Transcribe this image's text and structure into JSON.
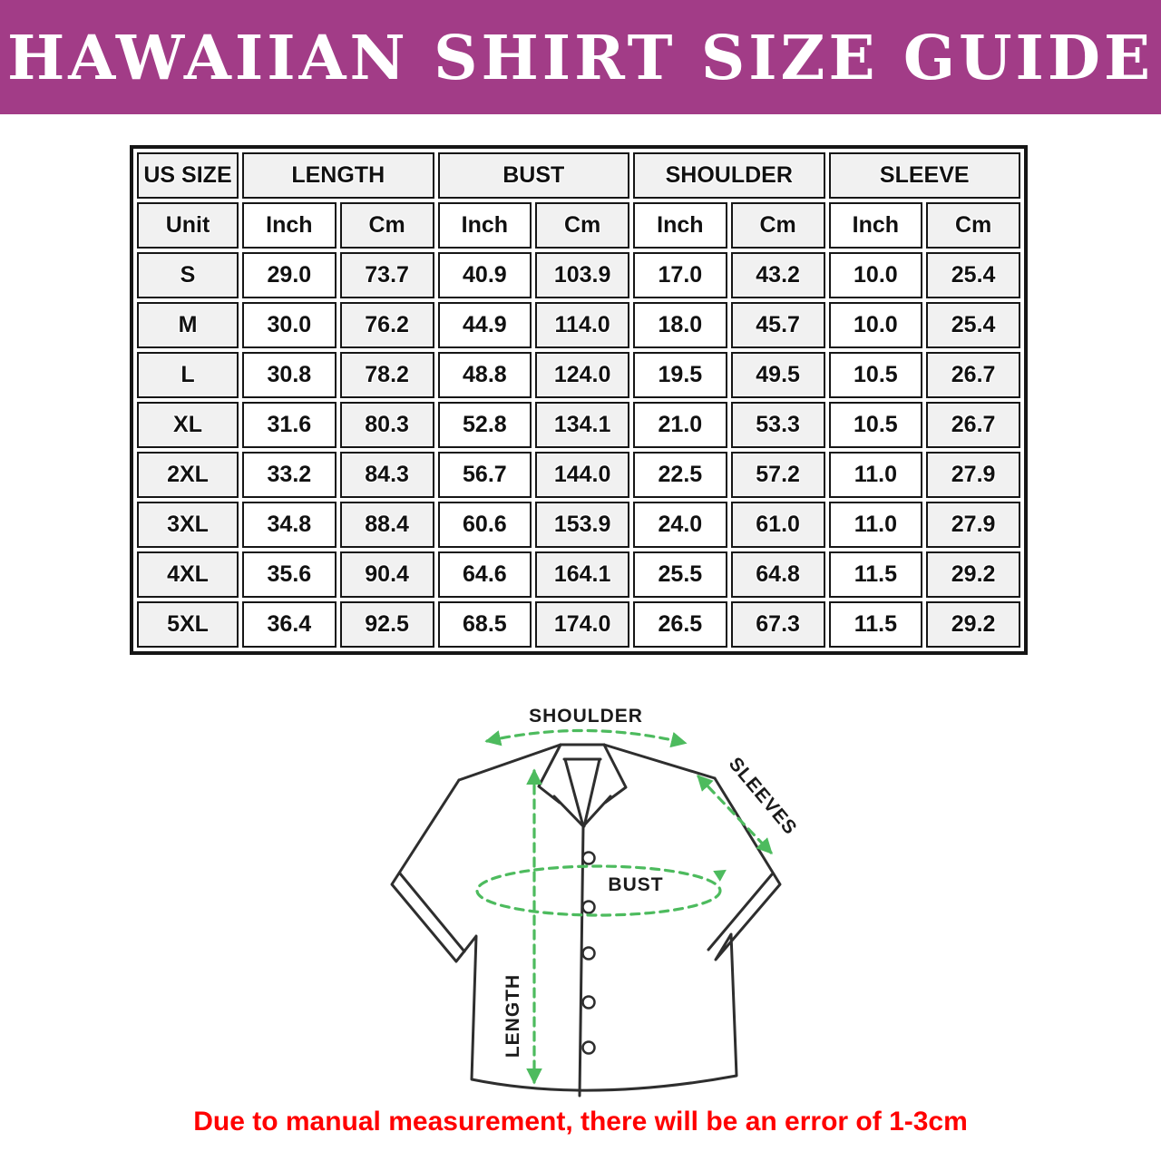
{
  "banner": {
    "title": "HAWAIIAN SHIRT SIZE GUIDE",
    "bg_color": "#a23c87",
    "text_color": "#ffffff"
  },
  "size_table": {
    "group_headers": [
      {
        "label": "US SIZE",
        "span": 1
      },
      {
        "label": "LENGTH",
        "span": 2
      },
      {
        "label": "BUST",
        "span": 2
      },
      {
        "label": "SHOULDER",
        "span": 2
      },
      {
        "label": "SLEEVE",
        "span": 2
      }
    ],
    "unit_row": [
      "Unit",
      "Inch",
      "Cm",
      "Inch",
      "Cm",
      "Inch",
      "Cm",
      "Inch",
      "Cm"
    ],
    "rows": [
      {
        "size": "S",
        "values": [
          "29.0",
          "73.7",
          "40.9",
          "103.9",
          "17.0",
          "43.2",
          "10.0",
          "25.4"
        ]
      },
      {
        "size": "M",
        "values": [
          "30.0",
          "76.2",
          "44.9",
          "114.0",
          "18.0",
          "45.7",
          "10.0",
          "25.4"
        ]
      },
      {
        "size": "L",
        "values": [
          "30.8",
          "78.2",
          "48.8",
          "124.0",
          "19.5",
          "49.5",
          "10.5",
          "26.7"
        ]
      },
      {
        "size": "XL",
        "values": [
          "31.6",
          "80.3",
          "52.8",
          "134.1",
          "21.0",
          "53.3",
          "10.5",
          "26.7"
        ]
      },
      {
        "size": "2XL",
        "values": [
          "33.2",
          "84.3",
          "56.7",
          "144.0",
          "22.5",
          "57.2",
          "11.0",
          "27.9"
        ]
      },
      {
        "size": "3XL",
        "values": [
          "34.8",
          "88.4",
          "60.6",
          "153.9",
          "24.0",
          "61.0",
          "11.0",
          "27.9"
        ]
      },
      {
        "size": "4XL",
        "values": [
          "35.6",
          "90.4",
          "64.6",
          "164.1",
          "25.5",
          "64.8",
          "11.5",
          "29.2"
        ]
      },
      {
        "size": "5XL",
        "values": [
          "36.4",
          "92.5",
          "68.5",
          "174.0",
          "26.5",
          "67.3",
          "11.5",
          "29.2"
        ]
      }
    ],
    "shade_color": "#f1f1f1",
    "border_color": "#161616"
  },
  "diagram": {
    "shoulder_label": "SHOULDER",
    "sleeves_label": "SLEEVES",
    "bust_label": "BUST",
    "length_label": "LENGTH",
    "arrow_color": "#4dbb5e",
    "outline_color": "#2e2e2e"
  },
  "footer": {
    "note": "Due to manual measurement, there will be an error of 1-3cm",
    "color": "#ff0000"
  }
}
